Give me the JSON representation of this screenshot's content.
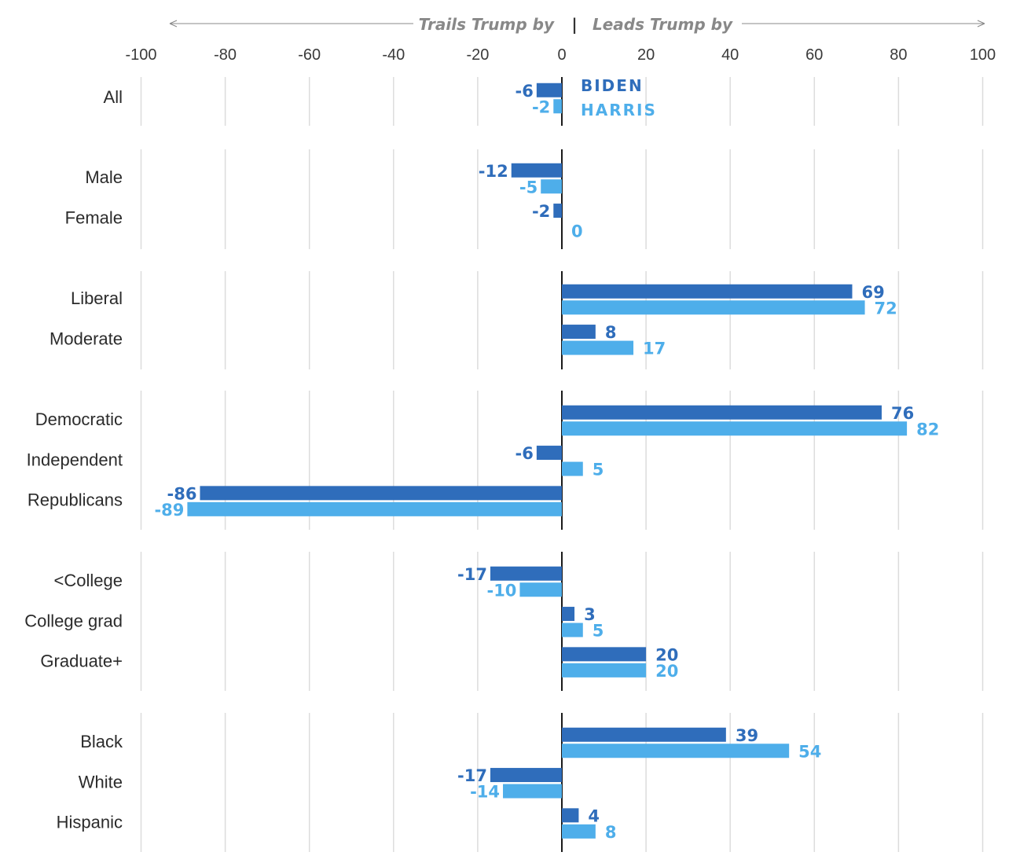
{
  "chart_data": {
    "type": "bar",
    "orientation": "horizontal",
    "title": "",
    "left_direction_label": "Trails Trump by",
    "right_direction_label": "Leads Trump by",
    "divider": "|",
    "xlim": [
      -100,
      100
    ],
    "xticks": [
      -100,
      -80,
      -60,
      -40,
      -20,
      0,
      20,
      40,
      60,
      80,
      100
    ],
    "legend": {
      "placement": "top-center",
      "entries": [
        "BIDEN",
        "HARRIS"
      ]
    },
    "colors": {
      "BIDEN": "#2f6dbb",
      "HARRIS": "#4eaeea",
      "grid": "#dcdcdc",
      "zero": "#1a1a1a",
      "direction": "#888888"
    },
    "groups": [
      {
        "categories": [
          "All"
        ]
      },
      {
        "categories": [
          "Male",
          "Female"
        ]
      },
      {
        "categories": [
          "Liberal",
          "Moderate"
        ]
      },
      {
        "categories": [
          "Democratic",
          "Independent",
          "Republicans"
        ]
      },
      {
        "categories": [
          "<College",
          "College grad",
          "Graduate+"
        ]
      },
      {
        "categories": [
          "Black",
          "White",
          "Hispanic"
        ]
      }
    ],
    "series": [
      {
        "name": "BIDEN",
        "values": [
          -6,
          -12,
          -2,
          69,
          8,
          76,
          -6,
          -86,
          -17,
          3,
          20,
          39,
          -17,
          4
        ]
      },
      {
        "name": "HARRIS",
        "values": [
          -2,
          -5,
          0,
          72,
          17,
          82,
          5,
          -89,
          -10,
          5,
          20,
          54,
          -14,
          8
        ]
      }
    ]
  }
}
